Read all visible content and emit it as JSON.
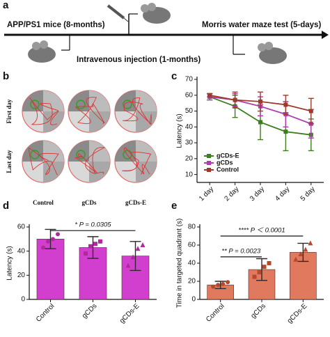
{
  "panel_a": {
    "label": "a",
    "left_text": "APP/PS1 mice (8-months)",
    "right_text": "Morris water maze test (5-days)",
    "bottom_text": "Intravenous injection (1-months)"
  },
  "panel_b": {
    "label": "b",
    "rows": [
      "First day",
      "Last day"
    ],
    "columns": [
      "Control",
      "gCDs",
      "gCDs-E"
    ]
  },
  "chart_data": [
    {
      "type": "line",
      "panel": "c",
      "y_label": "Latency (s)",
      "categories": [
        "1 day",
        "2 day",
        "3 day",
        "4 day",
        "5 day"
      ],
      "ylim": [
        5,
        70
      ],
      "yticks": [
        10,
        20,
        30,
        40,
        50,
        60,
        70
      ],
      "legend": "lower left",
      "series": [
        {
          "name": "gCDs-E",
          "color": "#3d7d1f",
          "values": [
            59,
            53,
            43,
            37,
            35
          ],
          "errors": [
            2,
            7,
            11,
            12,
            10
          ]
        },
        {
          "name": "gCDs",
          "color": "#b13cad",
          "values": [
            59,
            57,
            53,
            48,
            42
          ],
          "errors": [
            2,
            4,
            6,
            8,
            9
          ]
        },
        {
          "name": "Control",
          "color": "#9c3b2c",
          "values": [
            60,
            57,
            56,
            54,
            50
          ],
          "errors": [
            1,
            5,
            6,
            6,
            8
          ]
        }
      ]
    },
    {
      "type": "bar",
      "panel": "d",
      "y_label": "Latency (s)",
      "categories": [
        "Control",
        "gCDs",
        "gCDs-E"
      ],
      "values": [
        50,
        43,
        36
      ],
      "errors": [
        8,
        9,
        12
      ],
      "points": [
        [
          43,
          48,
          50,
          54
        ],
        [
          38,
          44,
          46,
          48
        ],
        [
          28,
          35,
          42,
          45
        ]
      ],
      "color": "#d23fcf",
      "point_color": "#b0289d",
      "ylim": [
        0,
        60
      ],
      "yticks": [
        0,
        20,
        40,
        60
      ],
      "annotations": [
        "* P = 0.0305"
      ]
    },
    {
      "type": "bar",
      "panel": "e",
      "y_label": "Time in targeted quadrant (s)",
      "categories": [
        "Control",
        "gCDs",
        "gCDs-E"
      ],
      "values": [
        16,
        33,
        52
      ],
      "errors": [
        4,
        12,
        10
      ],
      "points": [
        [
          14,
          16,
          17,
          19
        ],
        [
          25,
          30,
          36,
          40
        ],
        [
          44,
          50,
          55,
          62
        ]
      ],
      "color": "#e0795d",
      "point_color": "#b44a2a",
      "ylim": [
        0,
        80
      ],
      "yticks": [
        0,
        20,
        40,
        60,
        80
      ],
      "annotations": [
        "** P = 0.0023",
        "**** P ＜ 0.0001"
      ]
    }
  ]
}
